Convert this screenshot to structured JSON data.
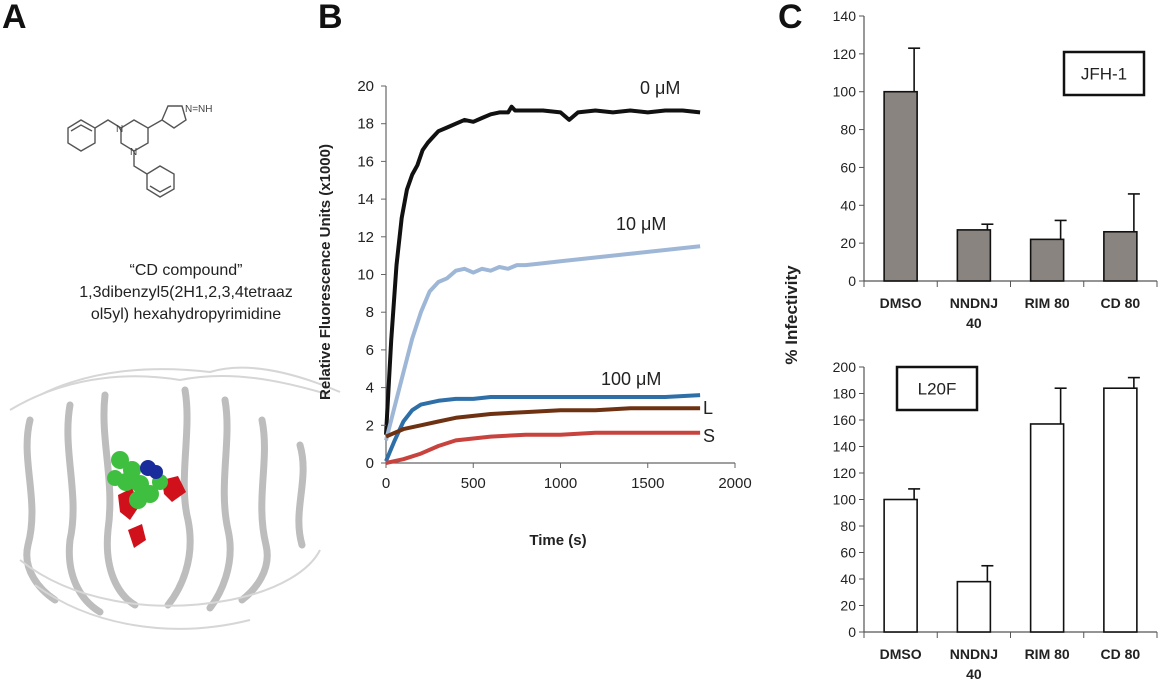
{
  "panels": {
    "a": "A",
    "b": "B",
    "c": "C"
  },
  "compound": {
    "name": "“CD compound”",
    "iupac_line1": "1,3dibenzyl5(2H1,2,3,4tetraaz",
    "iupac_line2": "ol5yl) hexahydropyrimidine",
    "tetrazole_label": "N=NH",
    "colors": {
      "helix": "#c8c8c8",
      "ligand": "#33cc33",
      "nitrogen": "#1a2b9c",
      "residues": "#d0101a"
    }
  },
  "chart_data": [
    {
      "type": "line",
      "xlabel": "Time (s)",
      "ylabel": "Relative Fluorescence Units (x1000)",
      "xlim": [
        0,
        2000
      ],
      "ylim": [
        0,
        20
      ],
      "xticks": [
        0,
        500,
        1000,
        1500,
        2000
      ],
      "yticks": [
        0,
        2,
        4,
        6,
        8,
        10,
        12,
        14,
        16,
        18,
        20
      ],
      "annotations": [
        "0 μM",
        "10 μM",
        "100 μM",
        "L",
        "S"
      ],
      "series": [
        {
          "color": "#111111",
          "x": [
            0,
            30,
            60,
            90,
            120,
            150,
            180,
            210,
            240,
            270,
            300,
            350,
            400,
            450,
            500,
            550,
            600,
            650,
            700,
            720,
            740,
            800,
            900,
            1000,
            1050,
            1100,
            1200,
            1300,
            1400,
            1500,
            1600,
            1700,
            1800
          ],
          "values": [
            1.5,
            6.5,
            10.5,
            13.0,
            14.5,
            15.3,
            15.8,
            16.6,
            17.0,
            17.3,
            17.6,
            17.8,
            18.0,
            18.2,
            18.1,
            18.3,
            18.5,
            18.6,
            18.6,
            18.9,
            18.7,
            18.7,
            18.7,
            18.6,
            18.2,
            18.6,
            18.7,
            18.6,
            18.7,
            18.6,
            18.7,
            18.7,
            18.6
          ]
        },
        {
          "color": "#9fb7d6",
          "x": [
            0,
            50,
            100,
            150,
            200,
            250,
            300,
            350,
            400,
            450,
            500,
            550,
            600,
            650,
            700,
            750,
            800,
            900,
            1000,
            1100,
            1200,
            1300,
            1400,
            1500,
            1600,
            1700,
            1800
          ],
          "values": [
            1.2,
            3.0,
            4.8,
            6.6,
            8.0,
            9.1,
            9.6,
            9.8,
            10.2,
            10.3,
            10.1,
            10.3,
            10.2,
            10.4,
            10.3,
            10.5,
            10.5,
            10.6,
            10.7,
            10.8,
            10.9,
            11.0,
            11.1,
            11.2,
            11.3,
            11.4,
            11.5
          ]
        },
        {
          "color": "#2e6fa8",
          "x": [
            0,
            50,
            100,
            150,
            200,
            250,
            300,
            400,
            500,
            600,
            800,
            1000,
            1200,
            1400,
            1600,
            1800
          ],
          "values": [
            0.1,
            1.2,
            2.2,
            2.8,
            3.1,
            3.2,
            3.3,
            3.4,
            3.4,
            3.5,
            3.5,
            3.5,
            3.5,
            3.5,
            3.5,
            3.6
          ]
        },
        {
          "color": "#6e3212",
          "x": [
            0,
            50,
            100,
            200,
            300,
            400,
            500,
            600,
            800,
            1000,
            1200,
            1400,
            1600,
            1800
          ],
          "values": [
            1.4,
            1.6,
            1.8,
            2.0,
            2.2,
            2.4,
            2.5,
            2.6,
            2.7,
            2.8,
            2.8,
            2.9,
            2.9,
            2.9
          ]
        },
        {
          "color": "#c9433e",
          "x": [
            0,
            50,
            100,
            200,
            300,
            400,
            500,
            600,
            800,
            1000,
            1200,
            1400,
            1600,
            1800
          ],
          "values": [
            0.0,
            0.1,
            0.2,
            0.5,
            0.9,
            1.2,
            1.3,
            1.4,
            1.5,
            1.5,
            1.6,
            1.6,
            1.6,
            1.6
          ]
        }
      ]
    },
    {
      "type": "bar",
      "legend_box": "JFH-1",
      "categories": [
        "DMSO",
        "NNDNJ 40",
        "RIM 80",
        "CD 80"
      ],
      "category_lines": [
        [
          "DMSO"
        ],
        [
          "NNDNJ",
          "40"
        ],
        [
          "RIM 80"
        ],
        [
          "CD 80"
        ]
      ],
      "values": [
        100,
        27,
        22,
        26
      ],
      "errors": [
        23,
        3,
        10,
        20
      ],
      "ylim": [
        0,
        140
      ],
      "yticks": [
        0,
        20,
        40,
        60,
        80,
        100,
        120,
        140
      ],
      "color": "#8a8480"
    },
    {
      "type": "bar",
      "legend_box": "L20F",
      "categories": [
        "DMSO",
        "NNDNJ 40",
        "RIM 80",
        "CD 80"
      ],
      "category_lines": [
        [
          "DMSO"
        ],
        [
          "NNDNJ",
          "40"
        ],
        [
          "RIM 80"
        ],
        [
          "CD 80"
        ]
      ],
      "values": [
        100,
        38,
        157,
        184
      ],
      "errors": [
        8,
        12,
        27,
        8
      ],
      "ylim": [
        0,
        200
      ],
      "yticks": [
        0,
        20,
        40,
        60,
        80,
        100,
        120,
        140,
        160,
        180,
        200
      ],
      "color": "#ffffff"
    }
  ],
  "shared_ylabel_c": "% Infectivity"
}
